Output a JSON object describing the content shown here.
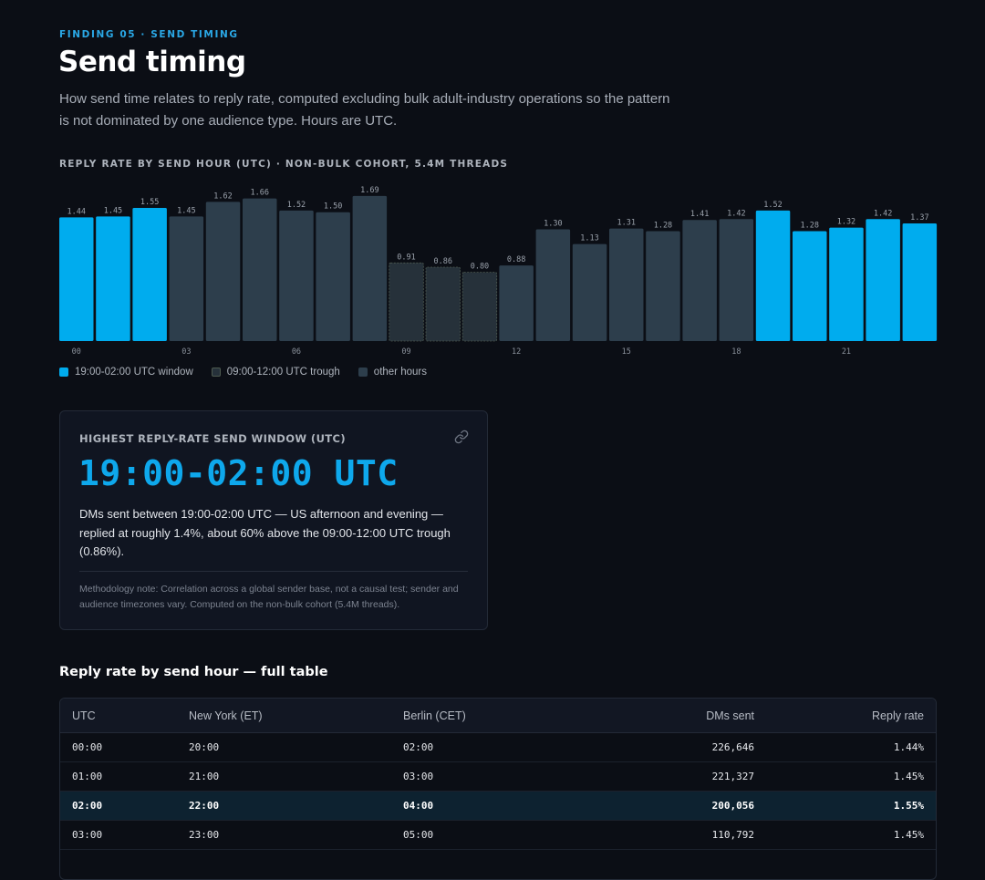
{
  "header": {
    "eyebrow": "FINDING 05 · SEND TIMING",
    "title": "Send timing",
    "subtitle": "How send time relates to reply rate, computed excluding bulk adult-industry operations so the pattern is not dominated by one audience type. Hours are UTC."
  },
  "chart_caption": "REPLY RATE BY SEND HOUR (UTC) · NON-BULK COHORT, 5.4M THREADS",
  "colors": {
    "window": "#00acee",
    "trough": "#26313a",
    "trough_border": "#4e5a50",
    "other": "#2d3e4c",
    "accent": "#0ea8ec"
  },
  "chart_data": {
    "type": "bar",
    "categories": [
      "00",
      "01",
      "02",
      "03",
      "04",
      "05",
      "06",
      "07",
      "08",
      "09",
      "10",
      "11",
      "12",
      "13",
      "14",
      "15",
      "16",
      "17",
      "18",
      "19",
      "20",
      "21",
      "22",
      "23"
    ],
    "x_tick_labels": [
      "00",
      "03",
      "06",
      "09",
      "12",
      "15",
      "18",
      "21"
    ],
    "values": [
      1.44,
      1.45,
      1.55,
      1.45,
      1.62,
      1.66,
      1.52,
      1.5,
      1.69,
      0.91,
      0.86,
      0.8,
      0.88,
      1.3,
      1.13,
      1.31,
      1.28,
      1.41,
      1.42,
      1.52,
      1.28,
      1.32,
      1.42,
      1.37
    ],
    "value_labels": [
      "1.44",
      "1.45",
      "1.55",
      "1.45",
      "1.62",
      "1.66",
      "1.52",
      "1.50",
      "1.69",
      "0.91",
      "0.86",
      "0.80",
      "0.88",
      "1.30",
      "1.13",
      "1.31",
      "1.28",
      "1.41",
      "1.42",
      "1.52",
      "1.28",
      "1.32",
      "1.42",
      "1.37"
    ],
    "groups": [
      "window",
      "window",
      "window",
      "other",
      "other",
      "other",
      "other",
      "other",
      "other",
      "trough",
      "trough",
      "trough",
      "other",
      "other",
      "other",
      "other",
      "other",
      "other",
      "other",
      "window",
      "window",
      "window",
      "window",
      "window"
    ],
    "ylim": [
      0,
      1.72
    ],
    "grid": false
  },
  "legend": [
    {
      "label": "19:00-02:00 UTC window",
      "group": "window"
    },
    {
      "label": "09:00-12:00 UTC trough",
      "group": "trough"
    },
    {
      "label": "other hours",
      "group": "other"
    }
  ],
  "card": {
    "label": "HIGHEST REPLY-RATE SEND WINDOW (UTC)",
    "link_icon": "link-icon",
    "big_value": "19:00-02:00 UTC",
    "body": "DMs sent between 19:00-02:00 UTC — US afternoon and evening — replied at roughly 1.4%, about 60% above the 09:00-12:00 UTC trough (0.86%).",
    "note": "Methodology note: Correlation across a global sender base, not a causal test; sender and audience timezones vary. Computed on the non-bulk cohort (5.4M threads)."
  },
  "table": {
    "title": "Reply rate by send hour — full table",
    "headers": [
      "UTC",
      "New York (ET)",
      "Berlin (CET)",
      "DMs sent",
      "Reply rate"
    ],
    "rows": [
      {
        "utc": "00:00",
        "ny": "20:00",
        "berlin": "02:00",
        "dms": "226,646",
        "rate": "1.44%"
      },
      {
        "utc": "01:00",
        "ny": "21:00",
        "berlin": "03:00",
        "dms": "221,327",
        "rate": "1.45%"
      },
      {
        "utc": "02:00",
        "ny": "22:00",
        "berlin": "04:00",
        "dms": "200,056",
        "rate": "1.55%"
      },
      {
        "utc": "03:00",
        "ny": "23:00",
        "berlin": "05:00",
        "dms": "110,792",
        "rate": "1.45%"
      }
    ]
  }
}
